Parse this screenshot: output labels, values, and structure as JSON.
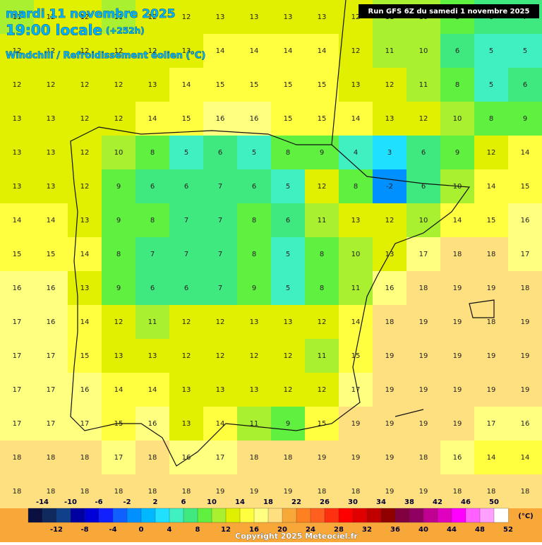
{
  "header": {
    "title": "mardi 11 novembre 2025",
    "time": "19:00 locale",
    "lead": "(+252h)",
    "subtitle": "Windchill / Refroidissement éolien (°C)"
  },
  "run_info": "Run GFS 6Z du samedi 1 novembre 2025",
  "grid": {
    "rows": [
      [
        11,
        12,
        12,
        11,
        12,
        12,
        13,
        13,
        13,
        13,
        12,
        11,
        10,
        8,
        6,
        7
      ],
      [
        12,
        12,
        12,
        12,
        12,
        13,
        14,
        14,
        14,
        14,
        12,
        11,
        10,
        6,
        5,
        5
      ],
      [
        12,
        12,
        12,
        12,
        13,
        14,
        15,
        15,
        15,
        15,
        13,
        12,
        11,
        8,
        5,
        6
      ],
      [
        13,
        13,
        12,
        12,
        14,
        15,
        16,
        16,
        15,
        15,
        14,
        13,
        12,
        10,
        8,
        9
      ],
      [
        13,
        13,
        12,
        10,
        8,
        5,
        6,
        5,
        8,
        9,
        4,
        3,
        6,
        9,
        12,
        14
      ],
      [
        13,
        13,
        12,
        9,
        6,
        6,
        7,
        6,
        5,
        12,
        8,
        -2,
        6,
        10,
        14,
        15
      ],
      [
        14,
        14,
        13,
        9,
        8,
        7,
        7,
        8,
        6,
        11,
        13,
        12,
        10,
        14,
        15,
        16
      ],
      [
        15,
        15,
        14,
        8,
        7,
        7,
        7,
        8,
        5,
        8,
        10,
        13,
        17,
        18,
        18,
        17
      ],
      [
        16,
        16,
        13,
        9,
        6,
        6,
        7,
        9,
        5,
        8,
        11,
        16,
        18,
        19,
        19,
        18
      ],
      [
        17,
        16,
        14,
        12,
        11,
        12,
        12,
        13,
        13,
        12,
        14,
        18,
        19,
        19,
        18,
        19
      ],
      [
        17,
        17,
        15,
        13,
        13,
        12,
        12,
        12,
        12,
        11,
        15,
        19,
        19,
        19,
        19,
        19
      ],
      [
        17,
        17,
        16,
        14,
        14,
        13,
        13,
        13,
        12,
        12,
        17,
        19,
        19,
        19,
        19,
        19
      ],
      [
        17,
        17,
        17,
        15,
        16,
        13,
        14,
        11,
        9,
        15,
        19,
        19,
        19,
        19,
        17,
        16
      ],
      [
        18,
        18,
        18,
        17,
        18,
        16,
        17,
        18,
        18,
        19,
        19,
        19,
        18,
        16,
        14,
        14
      ],
      [
        18,
        18,
        18,
        18,
        18,
        18,
        19,
        19,
        19,
        18,
        18,
        19,
        19,
        18,
        18,
        18
      ]
    ]
  },
  "colorbar": {
    "range": [
      -16,
      52
    ],
    "colors": [
      "#0a1040",
      "#102a60",
      "#10408a",
      "#0000a0",
      "#0000d8",
      "#1020ff",
      "#1060ff",
      "#0090ff",
      "#00b8ff",
      "#20e0ff",
      "#40f0c0",
      "#40e880",
      "#60f040",
      "#a8f030",
      "#e0f000",
      "#ffff40",
      "#ffff80",
      "#ffe080",
      "#f8a838",
      "#ff8020",
      "#ff6020",
      "#ff3010",
      "#ff0000",
      "#e00000",
      "#c00000",
      "#900000",
      "#800040",
      "#900060",
      "#c00090",
      "#e000c0",
      "#ff00ff",
      "#ff60ff",
      "#ffa0ff",
      "#ffffff"
    ],
    "top_labels": [
      -14,
      -10,
      -6,
      -2,
      2,
      6,
      10,
      14,
      18,
      22,
      26,
      30,
      34,
      38,
      42,
      46,
      50
    ],
    "bottom_labels": [
      -12,
      -8,
      -4,
      0,
      4,
      8,
      12,
      16,
      20,
      24,
      28,
      32,
      36,
      40,
      44,
      48,
      52
    ],
    "unit": "(°C)"
  },
  "copyright": "Copyright 2025 Meteociel.fr"
}
